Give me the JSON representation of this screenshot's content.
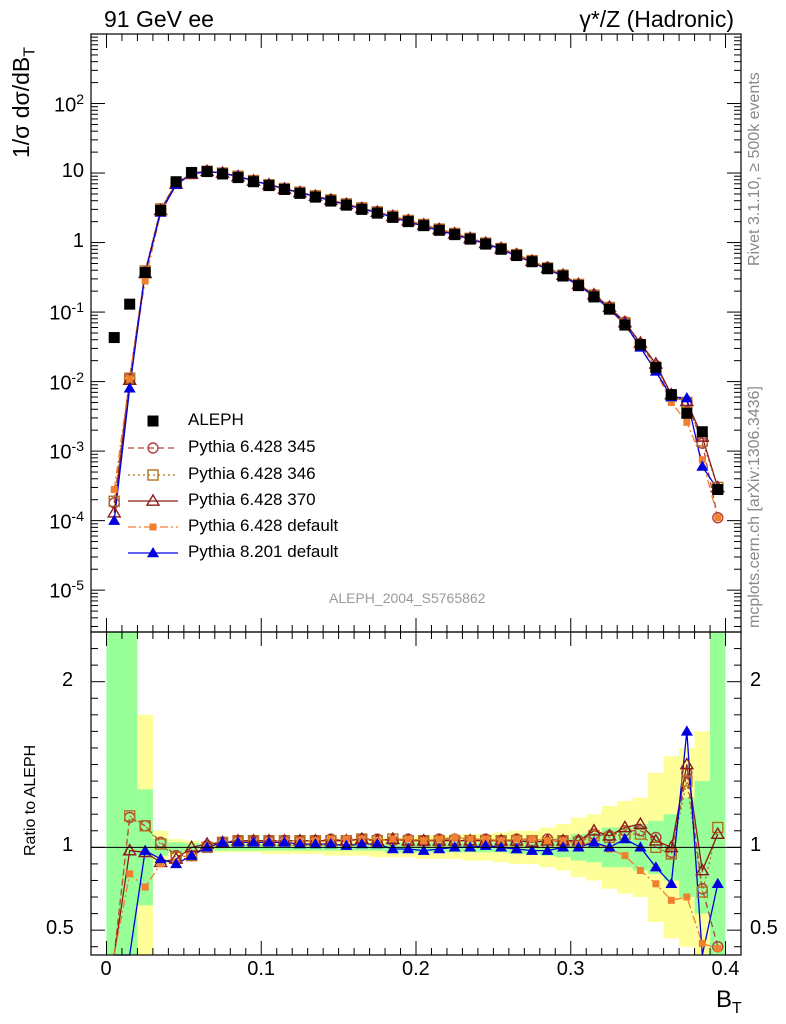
{
  "header": {
    "left": "91 GeV ee",
    "right": "γ*/Z (Hadronic)"
  },
  "side": {
    "rivet": "Rivet 3.1.10, ≥ 500k events",
    "mcplots": "mcplots.cern.ch [arXiv:1306.3436]"
  },
  "analysis_id": "ALEPH_2004_S5765862",
  "legend": [
    {
      "label": "ALEPH",
      "color": "#000000",
      "marker": "filled-square",
      "line": "none"
    },
    {
      "label": "Pythia 6.428 345",
      "color": "#b04040",
      "marker": "open-circle",
      "line": "dashed"
    },
    {
      "label": "Pythia 6.428 346",
      "color": "#b07020",
      "marker": "open-square",
      "line": "dotted"
    },
    {
      "label": "Pythia 6.428 370",
      "color": "#8b1a1a",
      "marker": "open-triangle",
      "line": "solid"
    },
    {
      "label": "Pythia 6.428 default",
      "color": "#f08030",
      "marker": "filled-square-small",
      "line": "dashdot"
    },
    {
      "label": "Pythia 8.201 default",
      "color": "#0000e0",
      "marker": "filled-triangle",
      "line": "solid"
    }
  ],
  "chart_data": {
    "type": "line",
    "title": "91 GeV ee — γ*/Z (Hadronic)",
    "xlabel": "B",
    "xlabel_sub": "T",
    "ylabel": "1/σ  dσ/dB",
    "ylabel_sub": "T",
    "ratio_ylabel": "Ratio to ALEPH",
    "xlim": [
      -0.01,
      0.41
    ],
    "ylim_log": [
      2.5e-06,
      1000
    ],
    "ratio_ylim": [
      0.35,
      2.3
    ],
    "x_ticks": [
      "0",
      "0.1",
      "0.2",
      "0.3",
      "0.4"
    ],
    "x_tick_values": [
      0,
      0.1,
      0.2,
      0.3,
      0.4
    ],
    "y_ticks": [
      "10^-5",
      "10^-4",
      "10^-3",
      "10^-2",
      "10^-1",
      "1",
      "10",
      "10^2"
    ],
    "y_tick_values": [
      1e-05,
      0.0001,
      0.001,
      0.01,
      0.1,
      1,
      10,
      100
    ],
    "ratio_ticks": [
      "0.5",
      "1",
      "2"
    ],
    "ratio_tick_values": [
      0.5,
      1,
      2
    ],
    "x": [
      0.005,
      0.015,
      0.025,
      0.035,
      0.045,
      0.055,
      0.065,
      0.075,
      0.085,
      0.095,
      0.105,
      0.115,
      0.125,
      0.135,
      0.145,
      0.155,
      0.165,
      0.175,
      0.185,
      0.195,
      0.205,
      0.215,
      0.225,
      0.235,
      0.245,
      0.255,
      0.265,
      0.275,
      0.285,
      0.295,
      0.305,
      0.315,
      0.325,
      0.335,
      0.345,
      0.355,
      0.365,
      0.375,
      0.385,
      0.395
    ],
    "data": {
      "name": "ALEPH",
      "values": [
        0.043,
        0.13,
        0.37,
        2.9,
        7.5,
        10.2,
        10.5,
        9.7,
        8.6,
        7.5,
        6.6,
        5.8,
        5.1,
        4.5,
        3.95,
        3.45,
        3.0,
        2.65,
        2.3,
        2.0,
        1.75,
        1.5,
        1.3,
        1.12,
        0.95,
        0.8,
        0.65,
        0.53,
        0.42,
        0.33,
        0.24,
        0.165,
        0.11,
        0.065,
        0.034,
        0.016,
        0.0065,
        0.0035,
        0.0019,
        0.00028
      ]
    },
    "series": [
      {
        "name": "Pythia 6.428 345",
        "values": [
          0.00018,
          0.011,
          0.38,
          3.0,
          7.2,
          9.9,
          10.7,
          10.0,
          9.0,
          7.8,
          6.8,
          6.0,
          5.3,
          4.7,
          4.15,
          3.6,
          3.15,
          2.78,
          2.4,
          2.1,
          1.82,
          1.57,
          1.36,
          1.16,
          0.99,
          0.83,
          0.68,
          0.55,
          0.44,
          0.34,
          0.25,
          0.178,
          0.118,
          0.072,
          0.035,
          0.017,
          0.0063,
          0.0052,
          0.0013,
          0.00011
        ],
        "ratio": [
          0.004,
          1.18,
          1.13,
          1.03,
          0.95,
          0.95,
          1.01,
          1.03,
          1.04,
          1.04,
          1.04,
          1.04,
          1.04,
          1.04,
          1.05,
          1.04,
          1.05,
          1.05,
          1.04,
          1.05,
          1.04,
          1.05,
          1.05,
          1.04,
          1.05,
          1.04,
          1.05,
          1.04,
          1.05,
          1.04,
          1.04,
          1.08,
          1.07,
          1.1,
          1.1,
          1.06,
          0.97,
          1.45,
          0.75,
          0.4
        ]
      },
      {
        "name": "Pythia 6.428 346",
        "values": [
          0.00019,
          0.0112,
          0.39,
          3.05,
          7.1,
          9.8,
          10.6,
          10.0,
          9.0,
          7.8,
          6.8,
          6.0,
          5.3,
          4.7,
          4.1,
          3.6,
          3.15,
          2.76,
          2.4,
          2.08,
          1.82,
          1.56,
          1.35,
          1.15,
          0.98,
          0.82,
          0.67,
          0.55,
          0.43,
          0.34,
          0.25,
          0.175,
          0.116,
          0.07,
          0.034,
          0.016,
          0.0062,
          0.005,
          0.0014,
          0.0003
        ],
        "ratio": [
          0.0045,
          1.19,
          1.13,
          1.02,
          0.94,
          0.95,
          1.0,
          1.03,
          1.04,
          1.04,
          1.04,
          1.04,
          1.04,
          1.04,
          1.04,
          1.04,
          1.05,
          1.04,
          1.05,
          1.04,
          1.04,
          1.04,
          1.04,
          1.04,
          1.04,
          1.04,
          1.04,
          1.04,
          1.03,
          1.04,
          1.03,
          1.07,
          1.06,
          1.08,
          1.08,
          1.0,
          0.96,
          1.4,
          0.73,
          1.12
        ]
      },
      {
        "name": "Pythia 6.428 370",
        "values": [
          0.00013,
          0.0105,
          0.36,
          2.9,
          7.0,
          9.7,
          10.6,
          10.0,
          8.9,
          7.7,
          6.8,
          5.9,
          5.25,
          4.65,
          4.1,
          3.55,
          3.1,
          2.74,
          2.38,
          2.07,
          1.8,
          1.55,
          1.34,
          1.15,
          0.98,
          0.82,
          0.67,
          0.54,
          0.43,
          0.34,
          0.25,
          0.178,
          0.118,
          0.071,
          0.036,
          0.018,
          0.0065,
          0.0052,
          0.0016,
          0.0003
        ],
        "ratio": [
          0.003,
          0.98,
          0.97,
          0.91,
          0.93,
          1.0,
          1.02,
          1.03,
          1.04,
          1.04,
          1.04,
          1.04,
          1.04,
          1.04,
          1.04,
          1.04,
          1.05,
          1.04,
          1.05,
          1.04,
          1.04,
          1.04,
          1.04,
          1.04,
          1.04,
          1.04,
          1.04,
          1.03,
          1.04,
          1.04,
          1.04,
          1.1,
          1.07,
          1.12,
          1.14,
          1.04,
          1.0,
          1.5,
          0.86,
          1.08
        ]
      },
      {
        "name": "Pythia 6.428 default",
        "values": [
          0.00028,
          0.011,
          0.28,
          2.7,
          6.8,
          9.7,
          10.5,
          10.0,
          8.9,
          7.7,
          6.8,
          6.0,
          5.3,
          4.6,
          4.1,
          3.6,
          3.1,
          2.75,
          2.38,
          2.08,
          1.8,
          1.57,
          1.36,
          1.16,
          0.98,
          0.82,
          0.67,
          0.55,
          0.43,
          0.34,
          0.24,
          0.17,
          0.11,
          0.065,
          0.031,
          0.014,
          0.005,
          0.0026,
          0.00075,
          0.00011
        ],
        "ratio": [
          0.0065,
          0.84,
          0.76,
          0.9,
          0.91,
          0.95,
          1.0,
          1.03,
          1.04,
          1.03,
          1.04,
          1.04,
          1.04,
          1.04,
          1.05,
          1.05,
          1.05,
          1.04,
          1.05,
          1.05,
          1.04,
          1.05,
          1.06,
          1.05,
          1.05,
          1.04,
          1.05,
          1.05,
          1.04,
          1.04,
          1.02,
          1.03,
          0.99,
          0.95,
          0.86,
          0.78,
          0.68,
          0.7,
          0.42,
          0.39
        ]
      },
      {
        "name": "Pythia 8.201 default",
        "values": [
          0.0001,
          0.008,
          0.37,
          2.7,
          6.8,
          9.7,
          10.5,
          10.0,
          8.9,
          7.7,
          6.8,
          5.95,
          5.2,
          4.6,
          4.0,
          3.5,
          3.05,
          2.7,
          2.3,
          1.98,
          1.72,
          1.48,
          1.3,
          1.12,
          0.96,
          0.8,
          0.64,
          0.52,
          0.41,
          0.33,
          0.24,
          0.17,
          0.11,
          0.068,
          0.031,
          0.014,
          0.006,
          0.0058,
          0.0006,
          0.00028
        ],
        "ratio": [
          0.0023,
          0.06,
          0.98,
          0.93,
          0.9,
          0.95,
          1.0,
          1.03,
          1.03,
          1.03,
          1.03,
          1.03,
          1.02,
          1.02,
          1.02,
          1.01,
          1.02,
          1.02,
          0.99,
          0.99,
          0.98,
          0.99,
          1.0,
          1.0,
          1.01,
          1.0,
          0.99,
          0.98,
          0.98,
          1.0,
          1.0,
          1.03,
          1.0,
          1.05,
          1.0,
          0.88,
          0.78,
          1.7,
          0.32,
          0.78
        ]
      }
    ],
    "band_inner": [
      2.1,
      2.0,
      0.35,
      0.05,
      0.03,
      0.025,
      0.02,
      0.02,
      0.02,
      0.02,
      0.02,
      0.02,
      0.02,
      0.02,
      0.02,
      0.02,
      0.02,
      0.02,
      0.03,
      0.03,
      0.03,
      0.03,
      0.03,
      0.03,
      0.03,
      0.03,
      0.04,
      0.04,
      0.05,
      0.06,
      0.08,
      0.09,
      0.12,
      0.12,
      0.14,
      0.16,
      0.2,
      0.3,
      0.4,
      2.5
    ],
    "band_outer": [
      2.6,
      2.3,
      0.8,
      0.1,
      0.05,
      0.04,
      0.03,
      0.03,
      0.03,
      0.03,
      0.04,
      0.04,
      0.04,
      0.04,
      0.05,
      0.05,
      0.05,
      0.06,
      0.06,
      0.06,
      0.07,
      0.07,
      0.07,
      0.08,
      0.08,
      0.09,
      0.1,
      0.1,
      0.12,
      0.14,
      0.18,
      0.2,
      0.25,
      0.28,
      0.3,
      0.45,
      0.55,
      0.6,
      0.7,
      2.6
    ]
  }
}
